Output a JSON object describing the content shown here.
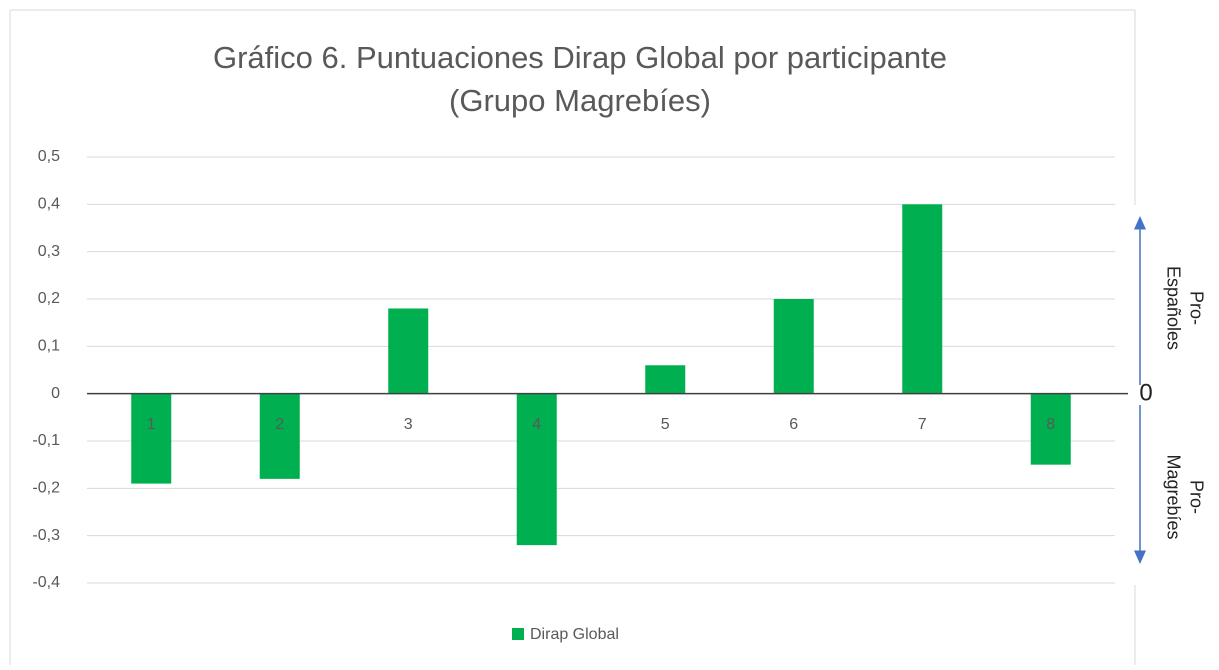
{
  "chart_data": {
    "type": "bar",
    "title": [
      "Gráfico 6. Puntuaciones Dirap Global por participante",
      "(Grupo Magrebíes)"
    ],
    "categories": [
      "1",
      "2",
      "3",
      "4",
      "5",
      "6",
      "7",
      "8"
    ],
    "series": [
      {
        "name": "Dirap Global",
        "color": "#00b050",
        "values": [
          -0.19,
          -0.18,
          0.18,
          -0.32,
          0.06,
          0.2,
          0.4,
          -0.15
        ]
      }
    ],
    "ylim": [
      -0.4,
      0.5
    ],
    "yticks": [
      {
        "value": -0.4,
        "label": "-0,4"
      },
      {
        "value": -0.3,
        "label": "-0,3"
      },
      {
        "value": -0.2,
        "label": "-0,2"
      },
      {
        "value": -0.1,
        "label": "-0,1"
      },
      0,
      {
        "value": 0.1,
        "label": "0,1"
      },
      {
        "value": 0.2,
        "label": "0,2"
      },
      {
        "value": 0.3,
        "label": "0,3"
      },
      {
        "value": 0.4,
        "label": "0,4"
      },
      {
        "value": 0.5,
        "label": "0,5"
      }
    ],
    "grid": true,
    "legend": "bottom",
    "zero_label": "0",
    "upper_label": [
      "Pro-",
      "Españoles"
    ],
    "lower_label": [
      "Pro-",
      "Magrebíes"
    ]
  }
}
